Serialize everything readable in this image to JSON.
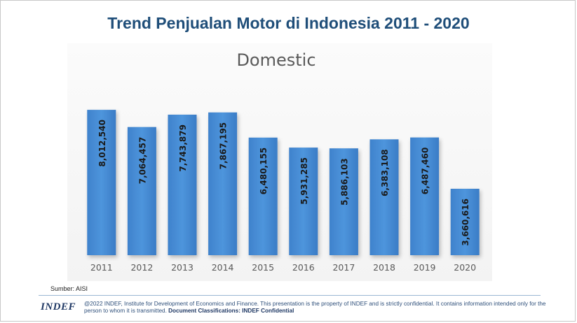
{
  "slide": {
    "title": "Trend Penjualan Motor di Indonesia 2011 - 2020",
    "source": "Sumber: AISI",
    "logo": "INDEF",
    "disclaimer": "@2022 INDEF, Institute for Development of Economics and Finance. This presentation is the property of INDEF and is strictly confidential. It contains information intended only for the person to whom it is transmitted.",
    "classification": "Document Classifications: INDEF Confidential"
  },
  "chart_data": {
    "type": "bar",
    "title": "Domestic",
    "xlabel": "",
    "ylabel": "",
    "categories": [
      "2011",
      "2012",
      "2013",
      "2014",
      "2015",
      "2016",
      "2017",
      "2018",
      "2019",
      "2020"
    ],
    "values": [
      8012540,
      7064457,
      7743879,
      7867195,
      6480155,
      5931285,
      5886103,
      6383108,
      6487460,
      3660616
    ],
    "value_labels": [
      "8,012,540",
      "7,064,457",
      "7,743,879",
      "7,867,195",
      "6,480,155",
      "5,931,285",
      "5,886,103",
      "6,383,108",
      "6,487,460",
      "3,660,616"
    ],
    "ylim": [
      0,
      8400000
    ],
    "grid": false,
    "legend": "none",
    "bar_color": "#4a8fd6",
    "bar_color_dark": "#2f74c0"
  }
}
